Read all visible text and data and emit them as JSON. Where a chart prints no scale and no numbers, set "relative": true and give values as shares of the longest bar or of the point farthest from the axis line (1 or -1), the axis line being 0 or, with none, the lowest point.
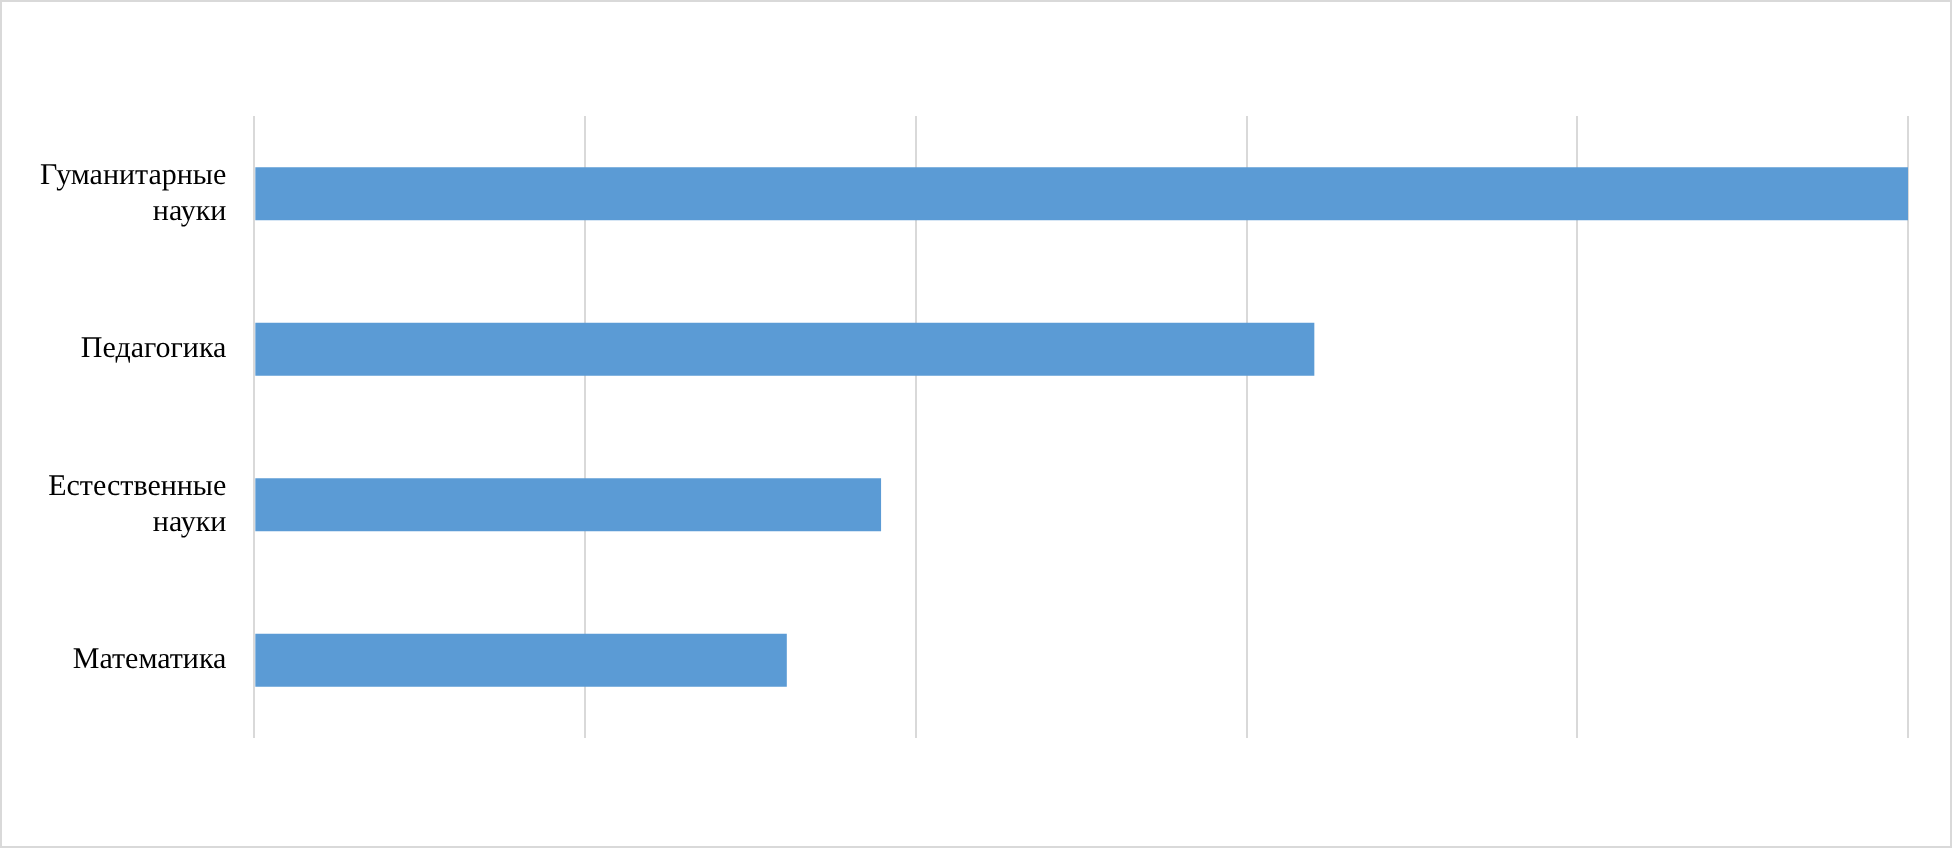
{
  "chart_data": {
    "type": "bar",
    "orientation": "horizontal",
    "relative": true,
    "grid": "x",
    "color": "#5b9bd5",
    "categories": [
      "Гуманитарные науки",
      "Педагогика",
      "Естественные науки",
      "Математика"
    ],
    "values": [
      1,
      0.641,
      0.379,
      0.322
    ]
  }
}
